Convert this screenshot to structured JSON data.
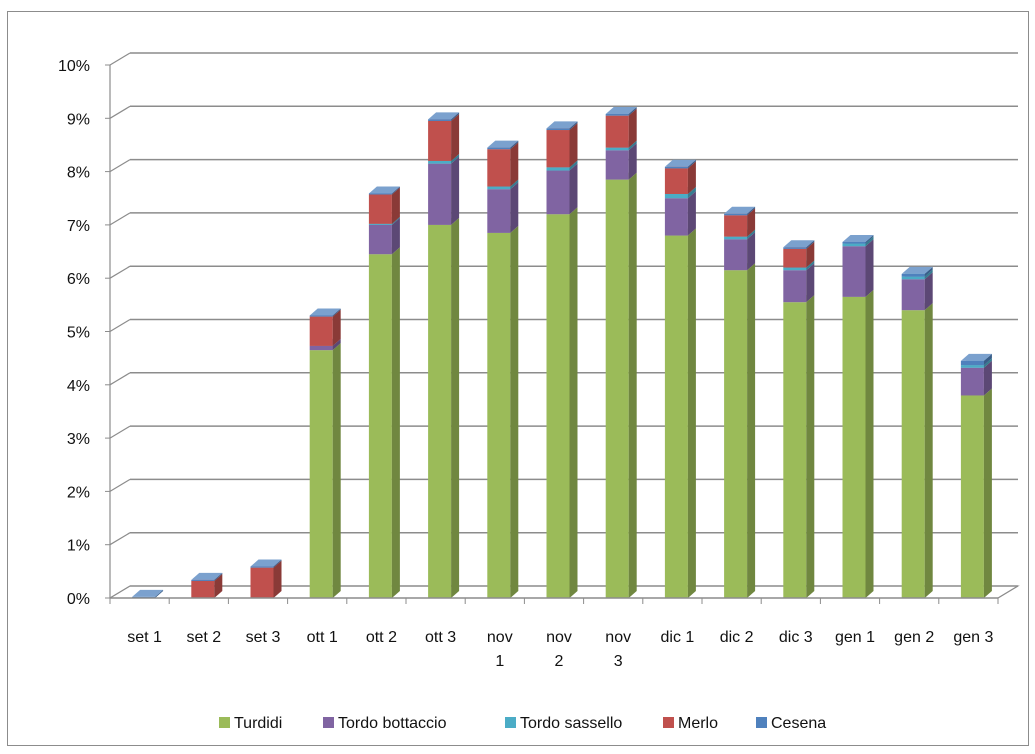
{
  "chart_data": {
    "type": "bar",
    "stacked": true,
    "three_d": true,
    "categories": [
      "set 1",
      "set 2",
      "set 3",
      "ott 1",
      "ott 2",
      "ott 3",
      "nov 1",
      "nov 2",
      "nov 3",
      "dic 1",
      "dic 2",
      "dic 3",
      "gen 1",
      "gen 2",
      "gen 3"
    ],
    "category_label_lines": [
      [
        "set 1"
      ],
      [
        "set 2"
      ],
      [
        "set 3"
      ],
      [
        "ott 1"
      ],
      [
        "ott 2"
      ],
      [
        "ott 3"
      ],
      [
        "nov",
        "1"
      ],
      [
        "nov",
        "2"
      ],
      [
        "nov",
        "3"
      ],
      [
        "dic 1"
      ],
      [
        "dic 2"
      ],
      [
        "dic 3"
      ],
      [
        "gen 1"
      ],
      [
        "gen 2"
      ],
      [
        "gen 3"
      ]
    ],
    "series": [
      {
        "name": "Turdidi",
        "color": "#9bbb59",
        "values": [
          0,
          0,
          0,
          4.65,
          6.45,
          7.0,
          6.85,
          7.2,
          7.85,
          6.8,
          6.15,
          5.55,
          5.65,
          5.4,
          3.8
        ]
      },
      {
        "name": "Tordo bottaccio",
        "color": "#8064a2",
        "values": [
          0,
          0,
          0,
          0.08,
          0.55,
          1.15,
          0.82,
          0.82,
          0.55,
          0.7,
          0.58,
          0.6,
          0.95,
          0.58,
          0.52
        ]
      },
      {
        "name": "Tordo sassello",
        "color": "#4bacc6",
        "values": [
          0,
          0,
          0,
          0,
          0.02,
          0.05,
          0.05,
          0.06,
          0.05,
          0.08,
          0.05,
          0.05,
          0.05,
          0.05,
          0.05
        ]
      },
      {
        "name": "Merlo",
        "color": "#c0504d",
        "values": [
          0,
          0.32,
          0.57,
          0.55,
          0.55,
          0.75,
          0.7,
          0.7,
          0.6,
          0.48,
          0.4,
          0.35,
          0,
          0,
          0
        ]
      },
      {
        "name": "Cesena",
        "color": "#4f81bd",
        "values": [
          0.02,
          0.02,
          0.02,
          0.02,
          0.02,
          0.03,
          0.03,
          0.03,
          0.03,
          0.03,
          0.03,
          0.03,
          0.03,
          0.05,
          0.08
        ]
      }
    ],
    "yticks": [
      "0%",
      "1%",
      "2%",
      "3%",
      "4%",
      "5%",
      "6%",
      "7%",
      "8%",
      "9%",
      "10%"
    ],
    "ylim": [
      0,
      10
    ],
    "title": "",
    "xlabel": "",
    "ylabel": "",
    "grid": true,
    "legend_position": "bottom"
  }
}
